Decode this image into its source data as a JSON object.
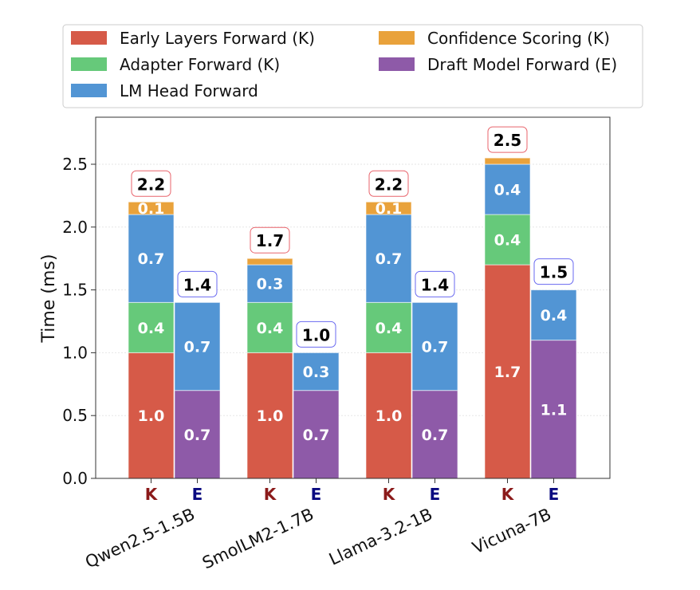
{
  "chart_data": {
    "type": "bar",
    "stacked": true,
    "title": "",
    "xlabel": "",
    "ylabel": "Time (ms)",
    "ylim": [
      0,
      2.85
    ],
    "yticks": [
      "0.0",
      "0.5",
      "1.0",
      "1.5",
      "2.0",
      "2.5"
    ],
    "grid": true,
    "legend_position": "top",
    "categories": [
      "Qwen2.5-1.5B",
      "SmolLM2-1.7B",
      "Llama-3.2-1B",
      "Vicuna-7B"
    ],
    "bar_kinds": [
      {
        "label": "K",
        "color": "#8b1a1a",
        "box_color": "#e8636b"
      },
      {
        "label": "E",
        "color": "#0a0a80",
        "box_color": "#6a6af0"
      }
    ],
    "series": [
      {
        "name": "Early Layers Forward (K)",
        "color": "#d65a48",
        "kind": "K",
        "values": [
          1.0,
          1.0,
          1.0,
          1.7
        ]
      },
      {
        "name": "Adapter Forward (K)",
        "color": "#66c97a",
        "kind": "K",
        "values": [
          0.4,
          0.4,
          0.4,
          0.4
        ]
      },
      {
        "name": "LM Head Forward",
        "color": "#5295d4",
        "kind": "K",
        "values": [
          0.7,
          0.3,
          0.7,
          0.4
        ]
      },
      {
        "name": "Confidence Scoring (K)",
        "color": "#e9a23b",
        "kind": "K",
        "values": [
          0.1,
          0.05,
          0.1,
          0.05
        ]
      },
      {
        "name": "Draft Model Forward (E)",
        "color": "#8e5aa8",
        "kind": "E",
        "values": [
          0.7,
          0.7,
          0.7,
          1.1
        ]
      },
      {
        "name": "LM Head Forward",
        "color": "#5295d4",
        "kind": "E",
        "values": [
          0.7,
          0.3,
          0.7,
          0.4
        ],
        "in_legend": false
      }
    ],
    "segment_labels": {
      "K": [
        [
          "1.0",
          "0.4",
          "0.7",
          "0.1"
        ],
        [
          "1.0",
          "0.4",
          "0.3",
          ""
        ],
        [
          "1.0",
          "0.4",
          "0.7",
          "0.1"
        ],
        [
          "1.7",
          "0.4",
          "0.4",
          ""
        ]
      ],
      "E": [
        [
          "0.7",
          "0.7"
        ],
        [
          "0.7",
          "0.3"
        ],
        [
          "0.7",
          "0.7"
        ],
        [
          "1.1",
          "0.4"
        ]
      ]
    },
    "totals": {
      "K": [
        "2.2",
        "1.7",
        "2.2",
        "2.5"
      ],
      "E": [
        "1.4",
        "1.0",
        "1.4",
        "1.5"
      ]
    },
    "legend": [
      "Early Layers Forward (K)",
      "Confidence Scoring (K)",
      "Adapter Forward (K)",
      "Draft Model Forward (E)",
      "LM Head Forward"
    ]
  }
}
